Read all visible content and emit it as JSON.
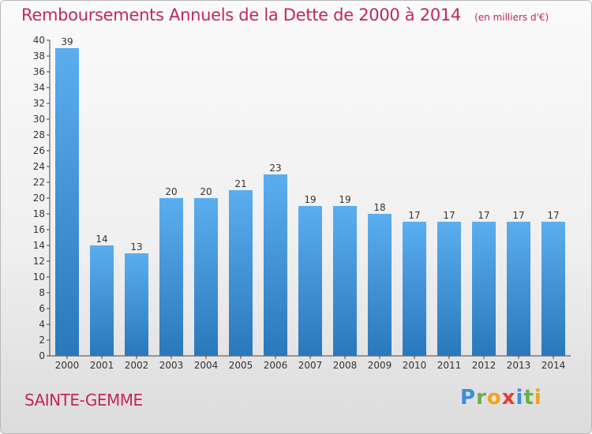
{
  "header": {
    "title": "Remboursements Annuels de la Dette de 2000 à 2014",
    "unit": "(en milliers d'€)"
  },
  "footer": {
    "town": "SAINTE-GEMME",
    "brand": "Proxiti"
  },
  "colors": {
    "bar_top": "#5aaef0",
    "bar_bottom": "#2a78bc",
    "title": "#c2275a"
  },
  "chart_data": {
    "type": "bar",
    "title": "Remboursements Annuels de la Dette de 2000 à 2014",
    "subtitle": "(en milliers d'€)",
    "xlabel": "",
    "ylabel": "",
    "categories": [
      "2000",
      "2001",
      "2002",
      "2003",
      "2004",
      "2005",
      "2006",
      "2007",
      "2008",
      "2009",
      "2010",
      "2011",
      "2012",
      "2013",
      "2014"
    ],
    "values": [
      39,
      14,
      13,
      20,
      20,
      21,
      23,
      19,
      19,
      18,
      17,
      17,
      17,
      17,
      17
    ],
    "ylim": [
      0,
      40
    ],
    "ytick_step": 2,
    "grid": false,
    "legend": "none"
  }
}
